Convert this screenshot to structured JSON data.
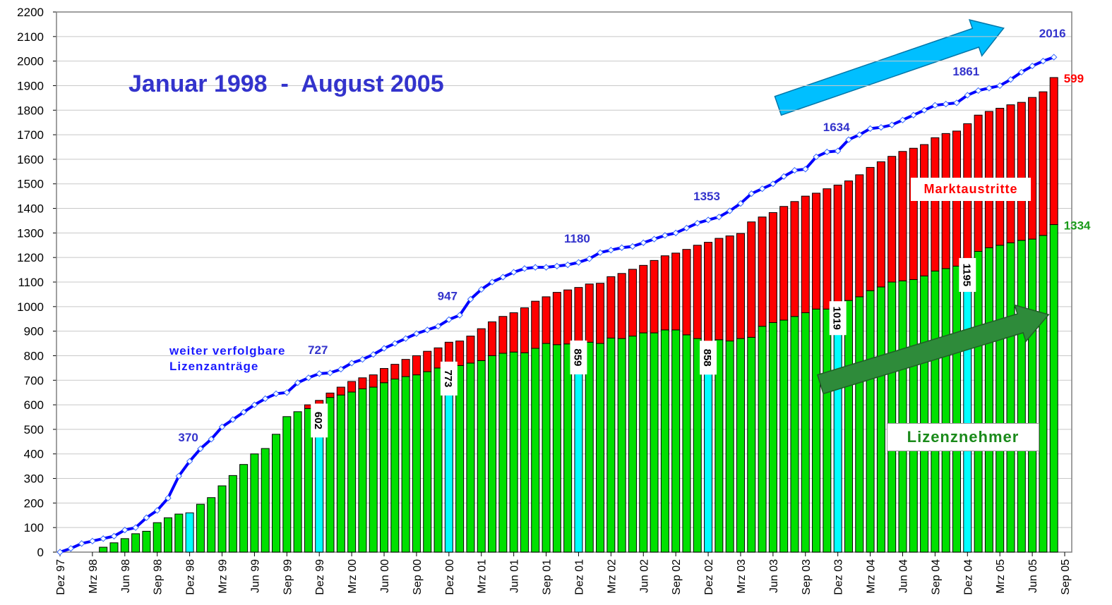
{
  "chart_data": {
    "type": "stacked_bar_line",
    "title": "Januar 1998  -  August 2005",
    "categories": [
      "Dez 97",
      null,
      null,
      "Mrz 98",
      null,
      null,
      "Jun 98",
      null,
      null,
      "Sep 98",
      null,
      null,
      "Dez 98",
      null,
      null,
      "Mrz 99",
      null,
      null,
      "Jun 99",
      null,
      null,
      "Sep 99",
      null,
      null,
      "Dez 99",
      null,
      null,
      "Mrz 00",
      null,
      null,
      "Jun 00",
      null,
      null,
      "Sep 00",
      null,
      null,
      "Dez 00",
      null,
      null,
      "Mrz 01",
      null,
      null,
      "Jun 01",
      null,
      null,
      "Sep 01",
      null,
      null,
      "Dez 01",
      null,
      null,
      "Mrz 02",
      null,
      null,
      "Jun 02",
      null,
      null,
      "Sep 02",
      null,
      null,
      "Dez 02",
      null,
      null,
      "Mrz 03",
      null,
      null,
      "Jun 03",
      null,
      null,
      "Sep 03",
      null,
      null,
      "Dez 03",
      null,
      null,
      "Mrz 04",
      null,
      null,
      "Jun 04",
      null,
      null,
      "Sep 04",
      null,
      null,
      "Dez 04",
      null,
      null,
      "Mrz 05",
      null,
      null,
      "Jun 05",
      null,
      null,
      "Sep 05"
    ],
    "ylim": [
      0,
      2200
    ],
    "yticks": [
      0,
      100,
      200,
      300,
      400,
      500,
      600,
      700,
      800,
      900,
      1000,
      1100,
      1200,
      1300,
      1400,
      1500,
      1600,
      1700,
      1800,
      1900,
      2000,
      2100,
      2200
    ],
    "grid": true,
    "series": [
      {
        "name": "Lizenznehmer",
        "kind": "bar",
        "color": "#00e000",
        "highlight_color": "#00ffff",
        "highlight": [
          12,
          24,
          36,
          48,
          60,
          72,
          84
        ],
        "labeled": [
          24,
          36,
          48,
          60,
          72,
          84,
          92
        ],
        "values": [
          null,
          null,
          null,
          null,
          20,
          38,
          55,
          75,
          85,
          120,
          140,
          155,
          160,
          195,
          222,
          270,
          312,
          357,
          400,
          422,
          480,
          552,
          572,
          585,
          602,
          630,
          640,
          652,
          665,
          672,
          690,
          705,
          715,
          722,
          735,
          750,
          773,
          760,
          770,
          780,
          800,
          810,
          815,
          812,
          830,
          850,
          845,
          848,
          859,
          855,
          850,
          872,
          870,
          880,
          893,
          893,
          905,
          905,
          885,
          870,
          858,
          865,
          860,
          870,
          875,
          920,
          935,
          945,
          960,
          975,
          990,
          990,
          1019,
          1025,
          1040,
          1065,
          1080,
          1100,
          1105,
          1110,
          1125,
          1145,
          1155,
          1165,
          1195,
          1225,
          1240,
          1250,
          1260,
          1270,
          1275,
          1290,
          1334,
          null
        ]
      },
      {
        "name": "Marktaustritte",
        "kind": "bar",
        "color": "#ff0000",
        "labeled": [
          92
        ],
        "values": [
          null,
          null,
          null,
          null,
          0,
          0,
          0,
          0,
          0,
          0,
          0,
          0,
          0,
          0,
          0,
          0,
          0,
          0,
          0,
          0,
          0,
          0,
          0,
          15,
          16,
          18,
          32,
          43,
          45,
          50,
          58,
          60,
          70,
          78,
          83,
          82,
          82,
          100,
          110,
          130,
          138,
          150,
          160,
          183,
          192,
          190,
          213,
          220,
          219,
          237,
          245,
          250,
          265,
          272,
          275,
          295,
          302,
          313,
          348,
          380,
          404,
          413,
          428,
          428,
          470,
          445,
          448,
          463,
          468,
          475,
          472,
          490,
          476,
          487,
          497,
          502,
          510,
          512,
          527,
          535,
          535,
          543,
          550,
          550,
          550,
          555,
          555,
          558,
          562,
          562,
          577,
          585,
          599,
          null
        ]
      },
      {
        "name": "weiter verfolgbare Lizenzanträge",
        "kind": "line",
        "color": "#0000ff",
        "labeled": [
          12,
          24,
          36,
          48,
          60,
          72,
          84,
          92
        ],
        "values": [
          0,
          15,
          35,
          45,
          55,
          65,
          90,
          100,
          140,
          170,
          220,
          310,
          370,
          421,
          460,
          510,
          540,
          570,
          600,
          625,
          645,
          650,
          690,
          710,
          727,
          730,
          745,
          770,
          785,
          805,
          830,
          850,
          870,
          890,
          905,
          920,
          947,
          965,
          1030,
          1070,
          1100,
          1120,
          1140,
          1155,
          1160,
          1160,
          1165,
          1170,
          1180,
          1195,
          1220,
          1230,
          1240,
          1245,
          1260,
          1275,
          1290,
          1300,
          1320,
          1340,
          1353,
          1365,
          1390,
          1420,
          1460,
          1480,
          1500,
          1530,
          1555,
          1560,
          1610,
          1630,
          1634,
          1680,
          1700,
          1725,
          1730,
          1740,
          1760,
          1780,
          1800,
          1820,
          1825,
          1830,
          1861,
          1880,
          1890,
          1900,
          1925,
          1955,
          1980,
          2000,
          2016,
          null
        ]
      }
    ]
  }
}
